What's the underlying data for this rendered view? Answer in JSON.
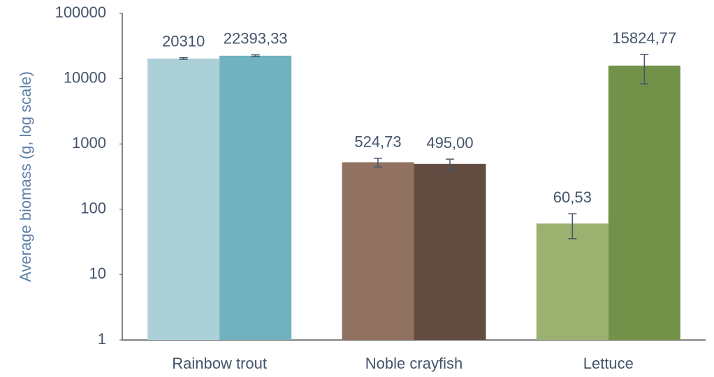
{
  "chart_data": {
    "type": "bar",
    "ylabel": "Average biomass (g, log scale)",
    "categories": [
      "Rainbow trout",
      "Noble crayfish",
      "Lettuce"
    ],
    "series": [
      {
        "colors": [
          "#acd0d8",
          "#917260",
          "#9ab16f"
        ],
        "values": [
          20310,
          524.73,
          60.53
        ],
        "errors": [
          600,
          80,
          25
        ],
        "value_labels": [
          "20310",
          "524,73",
          "60,53"
        ]
      },
      {
        "colors": [
          "#70b2be",
          "#634d42",
          "#739249"
        ],
        "values": [
          22393.33,
          495.0,
          15824.77
        ],
        "errors": [
          700,
          90,
          7500
        ],
        "value_labels": [
          "22393,33",
          "495,00",
          "15824,77"
        ]
      }
    ],
    "log_scale": true,
    "ylim": [
      1,
      100000
    ],
    "yticks": [
      1,
      10,
      100,
      1000,
      10000,
      100000
    ],
    "grid": false
  }
}
